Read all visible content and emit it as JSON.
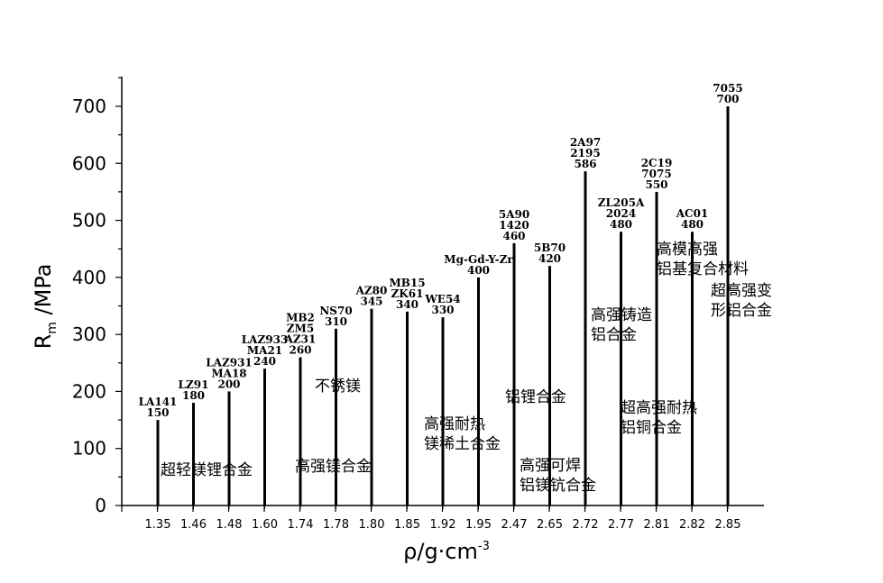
{
  "chart_data": {
    "type": "bar",
    "ylim": [
      0,
      750
    ],
    "yticks": [
      0,
      100,
      200,
      300,
      400,
      500,
      600,
      700
    ],
    "categories": [
      "1.35",
      "1.46",
      "1.48",
      "1.60",
      "1.74",
      "1.78",
      "1.80",
      "1.85",
      "1.92",
      "1.95",
      "2.47",
      "2.65",
      "2.72",
      "2.77",
      "2.81",
      "2.82",
      "2.85"
    ],
    "values": [
      150,
      180,
      200,
      240,
      260,
      310,
      345,
      340,
      330,
      400,
      460,
      420,
      586,
      480,
      550,
      480,
      700
    ],
    "point_labels": [
      [
        "LA141",
        "150"
      ],
      [
        "LZ91",
        "180"
      ],
      [
        "LAZ931",
        "MA18",
        "200"
      ],
      [
        "LAZ933",
        "MA21",
        "240"
      ],
      [
        "MB2",
        "ZM5",
        "AZ31",
        "260"
      ],
      [
        "NS70",
        "310"
      ],
      [
        "AZ80",
        "345"
      ],
      [
        "MB15",
        "ZK61",
        "340"
      ],
      [
        "WE54",
        "330"
      ],
      [
        "Mg-Gd-Y-Zr",
        "400"
      ],
      [
        "5A90",
        "1420",
        "460"
      ],
      [
        "5B70",
        "420"
      ],
      [
        "2A97",
        "2195",
        "586"
      ],
      [
        "ZL205A",
        "2024",
        "480"
      ],
      [
        "2C19",
        "7075",
        "550"
      ],
      [
        "AC01",
        "480"
      ],
      [
        "7055",
        "700"
      ]
    ],
    "annotations": [
      [
        "超轻镁锂合金"
      ],
      [
        "高强镁合金"
      ],
      [
        "不锈镁"
      ],
      [
        "高强耐热",
        "镁稀土合金"
      ],
      [
        "铝锂合金"
      ],
      [
        "高强可焊",
        "铝镁钪合金"
      ],
      [
        "高强铸造",
        "铝合金"
      ],
      [
        "超高强耐热",
        "铝铜合金"
      ],
      [
        "高模高强",
        "铝基复合材料"
      ],
      [
        "超高强变",
        "形铝合金"
      ]
    ],
    "ylabel": {
      "main": "R",
      "sub": "m",
      "rest": " /MPa"
    },
    "xlabel": {
      "main": "ρ/g·cm",
      "sup": "-3"
    }
  }
}
